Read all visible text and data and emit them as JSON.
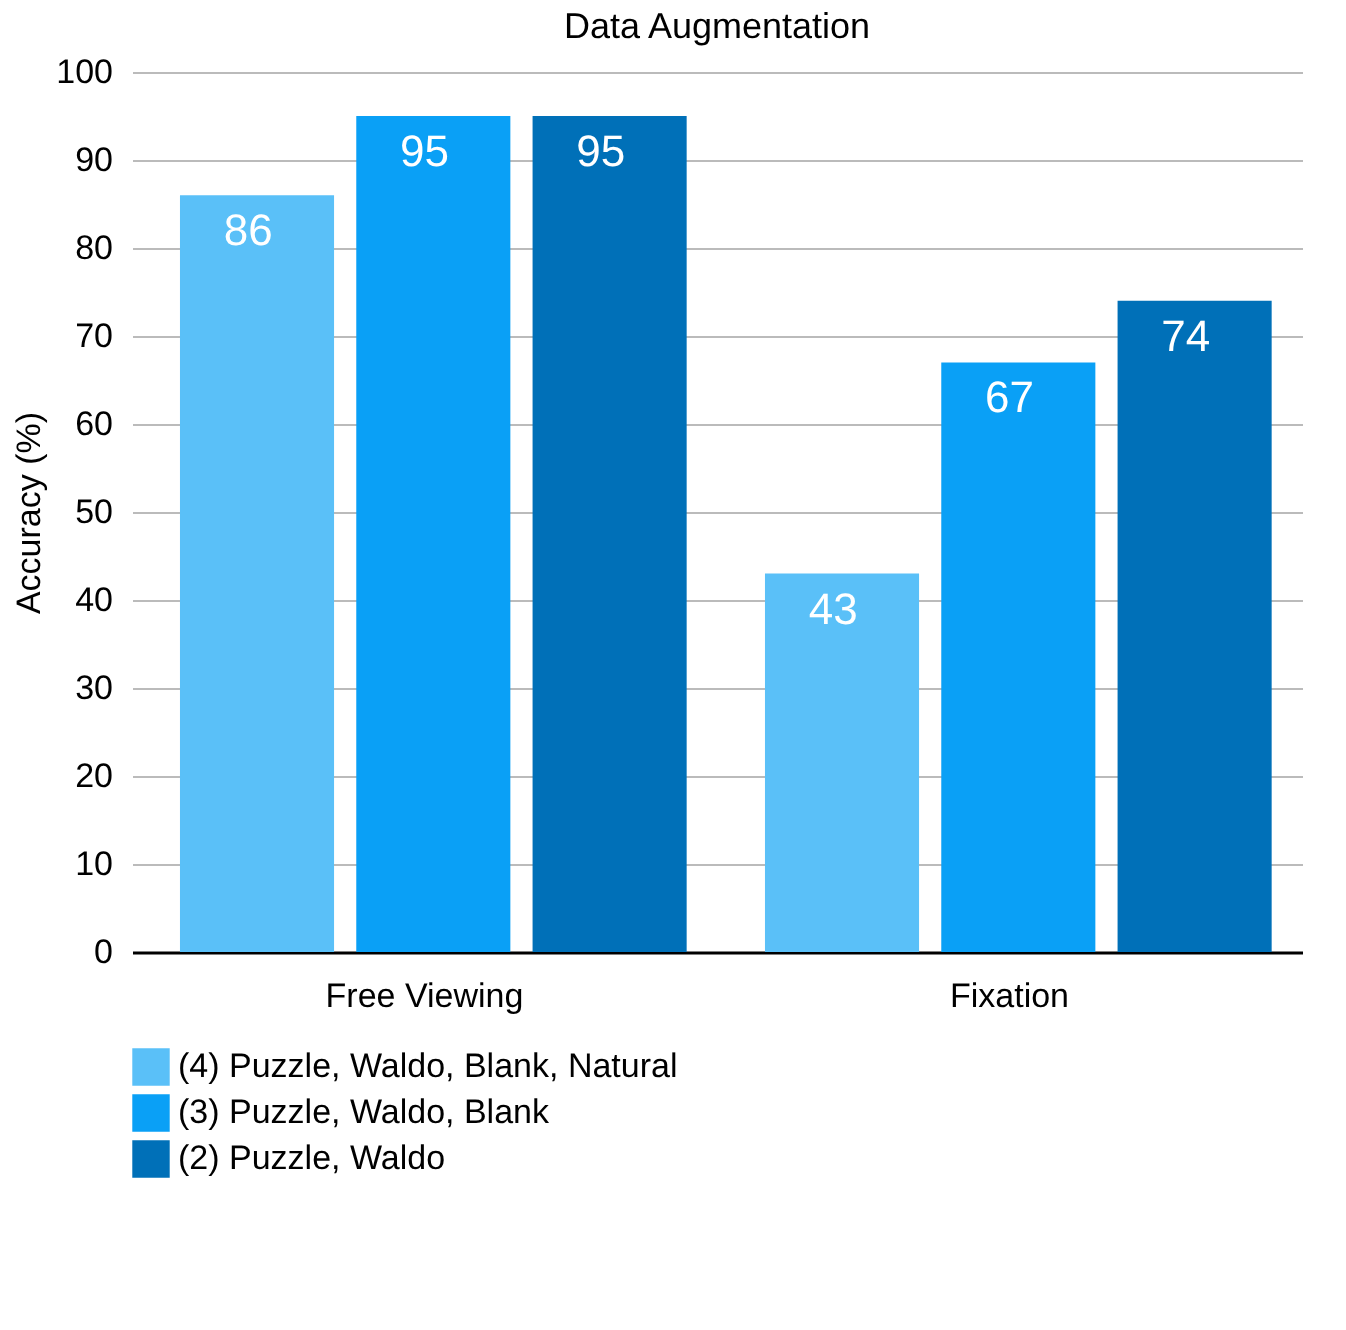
{
  "chart_data": {
    "type": "bar",
    "title": "Data Augmentation",
    "ylabel": "Accuracy (%)",
    "categories": [
      "Free Viewing",
      "Fixation"
    ],
    "series": [
      {
        "name": "(4) Puzzle, Waldo, Blank, Natural",
        "color": "#5ac0f8",
        "values": [
          86,
          43
        ]
      },
      {
        "name": "(3) Puzzle, Waldo, Blank",
        "color": "#0aa0f6",
        "values": [
          95,
          67
        ]
      },
      {
        "name": "(2) Puzzle, Waldo",
        "color": "#0070b8",
        "values": [
          95,
          74
        ]
      }
    ],
    "ylim": [
      0,
      100
    ],
    "yticks": [
      0,
      10,
      20,
      30,
      40,
      50,
      60,
      70,
      80,
      90,
      100
    ],
    "grid": "y",
    "legend": "bottom",
    "data_labels": true
  }
}
